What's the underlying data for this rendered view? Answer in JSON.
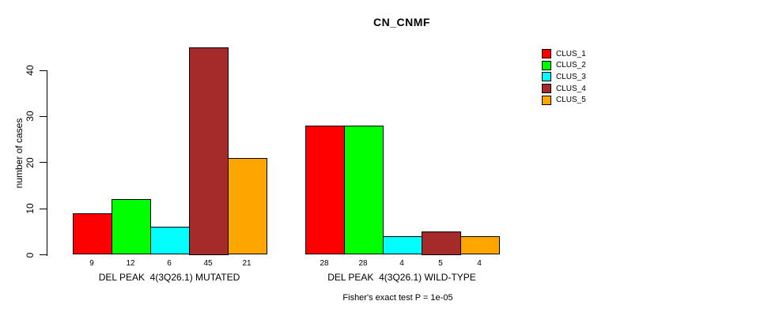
{
  "title": "CN_CNMF",
  "y_axis": {
    "label": "number of cases",
    "ticks": [
      0,
      10,
      20,
      30,
      40
    ]
  },
  "footer": "Fisher's exact test P = 1e-05",
  "legend": {
    "items": [
      {
        "label": "CLUS_1",
        "color": "#FF0000"
      },
      {
        "label": "CLUS_2",
        "color": "#00FF00"
      },
      {
        "label": "CLUS_3",
        "color": "#00FFFF"
      },
      {
        "label": "CLUS_4",
        "color": "#A52A2A"
      },
      {
        "label": "CLUS_5",
        "color": "#FFA500"
      }
    ]
  },
  "chart_data": {
    "type": "bar",
    "title": "CN_CNMF",
    "ylabel": "number of cases",
    "ylim": [
      0,
      45
    ],
    "yticks": [
      0,
      10,
      20,
      30,
      40
    ],
    "grid": false,
    "legend_position": "right-outside",
    "categories": [
      "DEL PEAK  4(3Q26.1) MUTATED",
      "DEL PEAK  4(3Q26.1) WILD-TYPE"
    ],
    "series": [
      {
        "name": "CLUS_1",
        "color": "#FF0000",
        "values": [
          9,
          28
        ]
      },
      {
        "name": "CLUS_2",
        "color": "#00FF00",
        "values": [
          12,
          28
        ]
      },
      {
        "name": "CLUS_3",
        "color": "#00FFFF",
        "values": [
          6,
          4
        ]
      },
      {
        "name": "CLUS_4",
        "color": "#A52A2A",
        "values": [
          45,
          5
        ]
      },
      {
        "name": "CLUS_5",
        "color": "#FFA500",
        "values": [
          21,
          4
        ]
      }
    ],
    "annotation": "Fisher's exact test P = 1e-05"
  }
}
